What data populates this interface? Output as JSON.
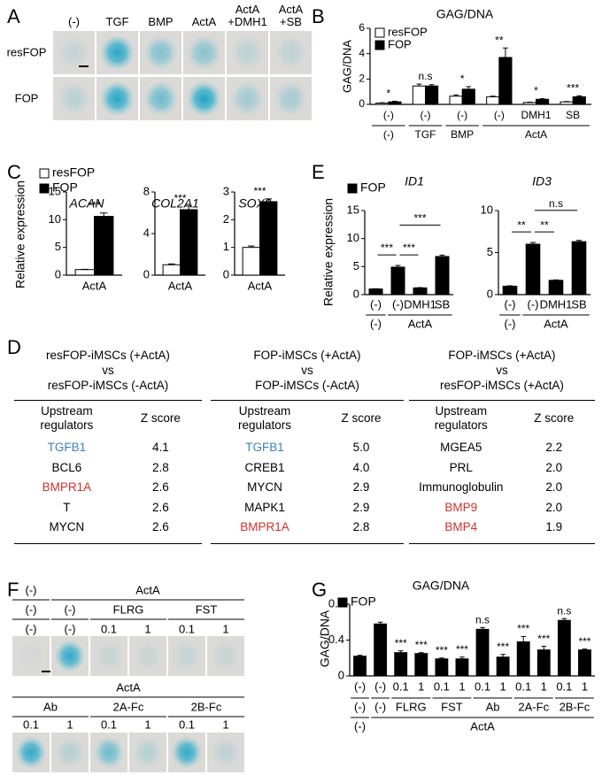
{
  "panel_labels": [
    "A",
    "B",
    "C",
    "D",
    "E",
    "F",
    "G"
  ],
  "panel_A": {
    "columns": [
      "(-)",
      "TGF",
      "BMP",
      "ActA",
      "ActA +DMH1",
      "ActA +SB"
    ],
    "rows": [
      "resFOP",
      "FOP"
    ]
  },
  "chart_data": [
    {
      "type": "bar",
      "title": "GAG/DNA",
      "ylabel": "GAG/DNA",
      "ylim": [
        0,
        6
      ],
      "yticks": [
        0,
        2,
        4,
        6
      ],
      "legend": "upper left",
      "categories": [
        "(-)",
        "(-)",
        "(-)",
        "(-)",
        "DMH1",
        "SB"
      ],
      "groups": [
        "(-)",
        "TGF",
        "BMP",
        "ActA",
        null,
        null
      ],
      "series": [
        {
          "name": "resFOP",
          "color": "#ffffff",
          "values": [
            0.1,
            1.45,
            0.65,
            0.6,
            0.15,
            0.2
          ],
          "errors": [
            0.03,
            0.15,
            0.1,
            0.05,
            0.03,
            0.03
          ]
        },
        {
          "name": "FOP",
          "color": "#000000",
          "values": [
            0.2,
            1.45,
            1.2,
            3.7,
            0.4,
            0.6
          ],
          "errors": [
            0.05,
            0.1,
            0.2,
            0.75,
            0.05,
            0.08
          ]
        }
      ],
      "significance": [
        "*",
        "n.s",
        "*",
        "**",
        "*",
        "***"
      ]
    },
    {
      "type": "bar",
      "title": "ACAN",
      "ylabel": "Relative expression",
      "ylim": [
        0,
        15
      ],
      "yticks": [
        0,
        5,
        10,
        15
      ],
      "legend": "upper left",
      "categories": [
        "ActA"
      ],
      "series": [
        {
          "name": "resFOP",
          "color": "#ffffff",
          "values": [
            1
          ],
          "errors": [
            0.05
          ]
        },
        {
          "name": "FOP",
          "color": "#000000",
          "values": [
            10.6
          ],
          "errors": [
            0.6
          ]
        }
      ],
      "significance": [
        "***"
      ]
    },
    {
      "type": "bar",
      "title": "COL2A1",
      "ylim": [
        0,
        8
      ],
      "yticks": [
        0,
        4,
        8
      ],
      "categories": [
        "ActA"
      ],
      "series": [
        {
          "color": "#ffffff",
          "values": [
            1
          ],
          "errors": [
            0.08
          ]
        },
        {
          "color": "#000000",
          "values": [
            6.3
          ],
          "errors": [
            0.35
          ]
        }
      ],
      "significance": [
        "***"
      ]
    },
    {
      "type": "bar",
      "title": "SOX9",
      "ylim": [
        0,
        3
      ],
      "yticks": [
        0,
        1,
        2,
        3
      ],
      "categories": [
        "ActA"
      ],
      "series": [
        {
          "color": "#ffffff",
          "values": [
            1
          ],
          "errors": [
            0.05
          ]
        },
        {
          "color": "#000000",
          "values": [
            2.65
          ],
          "errors": [
            0.1
          ]
        }
      ],
      "significance": [
        "***"
      ]
    },
    {
      "type": "bar",
      "title": "ID1",
      "ylabel": "Relative expression",
      "ylim": [
        0,
        15
      ],
      "yticks": [
        0,
        5,
        10,
        15
      ],
      "legend": "upper left",
      "categories": [
        "(-)",
        "(-)",
        "DMH1",
        "SB"
      ],
      "groups": [
        "(-)",
        "ActA",
        null,
        null
      ],
      "series": [
        {
          "name": "FOP",
          "color": "#000000",
          "values": [
            1,
            4.9,
            1.2,
            6.8
          ],
          "errors": [
            0.05,
            0.3,
            0.05,
            0.25
          ]
        }
      ],
      "comparisons": [
        {
          "between": [
            0,
            1
          ],
          "label": "***"
        },
        {
          "between": [
            1,
            2
          ],
          "label": "***"
        },
        {
          "between": [
            1,
            3
          ],
          "label": "***"
        }
      ]
    },
    {
      "type": "bar",
      "title": "ID3",
      "ylim": [
        0,
        10
      ],
      "yticks": [
        0,
        5,
        10
      ],
      "categories": [
        "(-)",
        "(-)",
        "DMH1",
        "SB"
      ],
      "groups": [
        "(-)",
        "ActA",
        null,
        null
      ],
      "series": [
        {
          "color": "#000000",
          "values": [
            1,
            6.0,
            1.7,
            6.3
          ],
          "errors": [
            0.05,
            0.2,
            0.05,
            0.15
          ]
        }
      ],
      "comparisons": [
        {
          "between": [
            0,
            1
          ],
          "label": "**"
        },
        {
          "between": [
            1,
            2
          ],
          "label": "**"
        },
        {
          "between": [
            1,
            3
          ],
          "label": "n.s"
        }
      ]
    },
    {
      "type": "bar",
      "title": "GAG/DNA",
      "ylabel": "GAG/DNA",
      "ylim": [
        0,
        0.8
      ],
      "yticks": [
        0,
        0.4,
        0.8
      ],
      "legend": "upper left",
      "categories": [
        "(-)",
        "(-)",
        "0.1",
        "1",
        "0.1",
        "1",
        "0.1",
        "1",
        "0.1",
        "1",
        "0.1",
        "1"
      ],
      "groups": [
        "(-)",
        "(-)",
        "FLRG",
        null,
        "FST",
        null,
        "Ab",
        null,
        "2A-Fc",
        null,
        "2B-Fc",
        null
      ],
      "supergroups": [
        "(-)",
        "ActA",
        null,
        null,
        null,
        null,
        null,
        null,
        null,
        null,
        null,
        null
      ],
      "series": [
        {
          "name": "FOP",
          "color": "#000000",
          "values": [
            0.22,
            0.58,
            0.26,
            0.25,
            0.19,
            0.19,
            0.52,
            0.21,
            0.38,
            0.29,
            0.62,
            0.29
          ],
          "errors": [
            0.01,
            0.02,
            0.02,
            0.01,
            0.01,
            0.02,
            0.02,
            0.03,
            0.06,
            0.04,
            0.02,
            0.01
          ]
        }
      ],
      "significance": [
        null,
        null,
        "***",
        "***",
        "***",
        "***",
        "n.s",
        "***",
        "***",
        "***",
        "n.s",
        "***"
      ]
    }
  ],
  "panel_D": {
    "tables": [
      {
        "comparison": [
          "resFOP-iMSCs (+ActA)",
          "vs",
          "resFOP-iMSCs (-ActA)"
        ],
        "columns": [
          "Upstream regulators",
          "Z score"
        ],
        "rows": [
          {
            "regulator": "TGFB1",
            "z": "4.1",
            "color": "#3f7fc4"
          },
          {
            "regulator": "BCL6",
            "z": "2.8",
            "color": "#000000"
          },
          {
            "regulator": "BMPR1A",
            "z": "2.6",
            "color": "#d0312d"
          },
          {
            "regulator": "T",
            "z": "2.6",
            "color": "#000000"
          },
          {
            "regulator": "MYCN",
            "z": "2.6",
            "color": "#000000"
          }
        ]
      },
      {
        "comparison": [
          "FOP-iMSCs (+ActA)",
          "vs",
          "FOP-iMSCs (-ActA)"
        ],
        "columns": [
          "Upstream regulators",
          "Z score"
        ],
        "rows": [
          {
            "regulator": "TGFB1",
            "z": "5.0",
            "color": "#3f7fc4"
          },
          {
            "regulator": "CREB1",
            "z": "4.0",
            "color": "#000000"
          },
          {
            "regulator": "MYCN",
            "z": "2.9",
            "color": "#000000"
          },
          {
            "regulator": "MAPK1",
            "z": "2.9",
            "color": "#000000"
          },
          {
            "regulator": "BMPR1A",
            "z": "2.8",
            "color": "#d0312d"
          }
        ]
      },
      {
        "comparison": [
          "FOP-iMSCs (+ActA)",
          "vs",
          "resFOP-iMSCs (+ActA)"
        ],
        "columns": [
          "Upstream regulators",
          "Z score"
        ],
        "rows": [
          {
            "regulator": "MGEA5",
            "z": "2.2",
            "color": "#000000"
          },
          {
            "regulator": "PRL",
            "z": "2.0",
            "color": "#000000"
          },
          {
            "regulator": "Immunoglobulin",
            "z": "2.0",
            "color": "#000000"
          },
          {
            "regulator": "BMP9",
            "z": "2.0",
            "color": "#d0312d"
          },
          {
            "regulator": "BMP4",
            "z": "1.9",
            "color": "#d0312d"
          }
        ]
      }
    ]
  },
  "panel_F": {
    "top": [
      [
        "(-)",
        "ActA",
        null,
        null,
        null,
        null
      ],
      [
        "(-)",
        "(-)",
        "FLRG",
        null,
        "FST",
        null
      ],
      [
        "(-)",
        "(-)",
        "0.1",
        "1",
        "0.1",
        "1"
      ]
    ],
    "bottom": [
      [
        "ActA",
        null,
        null,
        null,
        null,
        null
      ],
      [
        "Ab",
        null,
        "2A-Fc",
        null,
        "2B-Fc",
        null
      ],
      [
        "0.1",
        "1",
        "0.1",
        "1",
        "0.1",
        "1"
      ]
    ]
  }
}
